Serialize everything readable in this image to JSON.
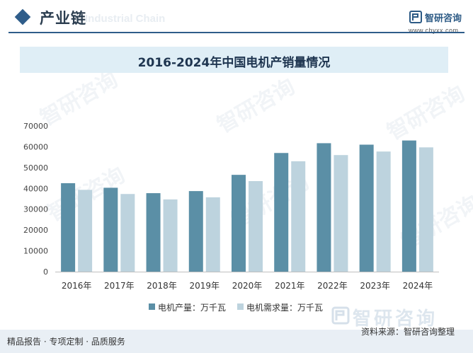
{
  "header": {
    "section_title": "产业链",
    "section_subtitle": "Industrial Chain",
    "logo_text": "智研咨询",
    "site_url": "www.chyxx.com"
  },
  "watermark_text": "智研咨询",
  "chart_data": {
    "type": "bar",
    "title": "2016-2024年中国电机产销量情况",
    "categories": [
      "2016年",
      "2017年",
      "2018年",
      "2019年",
      "2020年",
      "2021年",
      "2022年",
      "2023年",
      "2024年"
    ],
    "series": [
      {
        "name": "电机产量：万千瓦",
        "color": "#5b8fa6",
        "values": [
          42500,
          40300,
          37700,
          38700,
          46500,
          57000,
          61700,
          61000,
          63000
        ]
      },
      {
        "name": "电机需求量：万千瓦",
        "color": "#bdd3de",
        "values": [
          39300,
          37300,
          34700,
          35700,
          43500,
          53000,
          56000,
          57700,
          59700
        ]
      }
    ],
    "yticks": [
      0,
      10000,
      20000,
      30000,
      40000,
      50000,
      60000,
      70000
    ],
    "ylim": [
      0,
      70000
    ],
    "legend_position": "bottom",
    "grid": false
  },
  "footer": {
    "left_text": "精品报告 · 专项定制 · 品质服务",
    "source_text": "资料来源：智研咨询整理",
    "brand_text": "智研咨询"
  }
}
